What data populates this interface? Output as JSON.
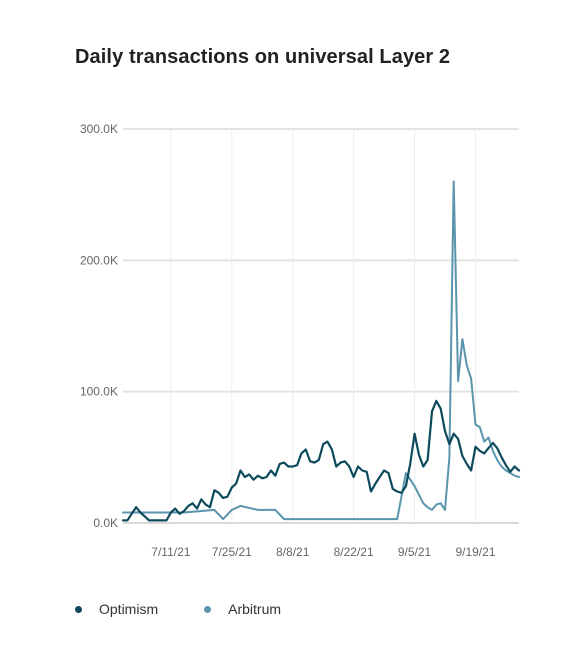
{
  "chart_data": {
    "type": "line",
    "title": "Daily transactions on universal Layer 2",
    "xlabel": "",
    "ylabel": "",
    "ylim": [
      0,
      300000
    ],
    "y_ticks": [
      0,
      100000,
      200000,
      300000
    ],
    "y_tick_labels": [
      "0.0K",
      "100.0K",
      "200.0K",
      "300.0K"
    ],
    "xlim": [
      "2021-06-30",
      "2021-09-29"
    ],
    "x_ticks": [
      "2021-07-11",
      "2021-07-25",
      "2021-08-08",
      "2021-08-22",
      "2021-09-05",
      "2021-09-19"
    ],
    "x_tick_labels": [
      "7/11/21",
      "7/25/21",
      "8/8/21",
      "8/22/21",
      "9/5/21",
      "9/19/21"
    ],
    "grid": "both",
    "legend_position": "bottom-left",
    "series": [
      {
        "name": "Optimism",
        "color": "#0d4a5c",
        "x": [
          "2021-06-30",
          "2021-07-01",
          "2021-07-02",
          "2021-07-03",
          "2021-07-04",
          "2021-07-05",
          "2021-07-06",
          "2021-07-07",
          "2021-07-08",
          "2021-07-09",
          "2021-07-10",
          "2021-07-11",
          "2021-07-12",
          "2021-07-13",
          "2021-07-14",
          "2021-07-15",
          "2021-07-16",
          "2021-07-17",
          "2021-07-18",
          "2021-07-19",
          "2021-07-20",
          "2021-07-21",
          "2021-07-22",
          "2021-07-23",
          "2021-07-24",
          "2021-07-25",
          "2021-07-26",
          "2021-07-27",
          "2021-07-28",
          "2021-07-29",
          "2021-07-30",
          "2021-07-31",
          "2021-08-01",
          "2021-08-02",
          "2021-08-03",
          "2021-08-04",
          "2021-08-05",
          "2021-08-06",
          "2021-08-07",
          "2021-08-08",
          "2021-08-09",
          "2021-08-10",
          "2021-08-11",
          "2021-08-12",
          "2021-08-13",
          "2021-08-14",
          "2021-08-15",
          "2021-08-16",
          "2021-08-17",
          "2021-08-18",
          "2021-08-19",
          "2021-08-20",
          "2021-08-21",
          "2021-08-22",
          "2021-08-23",
          "2021-08-24",
          "2021-08-25",
          "2021-08-26",
          "2021-08-27",
          "2021-08-28",
          "2021-08-29",
          "2021-08-30",
          "2021-08-31",
          "2021-09-01",
          "2021-09-02",
          "2021-09-03",
          "2021-09-04",
          "2021-09-05",
          "2021-09-06",
          "2021-09-07",
          "2021-09-08",
          "2021-09-09",
          "2021-09-10",
          "2021-09-11",
          "2021-09-12",
          "2021-09-13",
          "2021-09-14",
          "2021-09-15",
          "2021-09-16",
          "2021-09-17",
          "2021-09-18",
          "2021-09-19",
          "2021-09-20",
          "2021-09-21",
          "2021-09-22",
          "2021-09-23",
          "2021-09-24",
          "2021-09-25",
          "2021-09-26",
          "2021-09-27",
          "2021-09-28",
          "2021-09-29"
        ],
        "values": [
          2000,
          2000,
          7000,
          12000,
          8000,
          5000,
          2000,
          2000,
          2000,
          2000,
          2000,
          8000,
          11000,
          7000,
          9000,
          13000,
          15000,
          11000,
          18000,
          14000,
          12000,
          25000,
          23000,
          19000,
          20000,
          27000,
          30000,
          40000,
          35000,
          37000,
          33000,
          36000,
          34000,
          35000,
          40000,
          36000,
          45000,
          46000,
          43000,
          43000,
          44000,
          53000,
          56000,
          47000,
          46000,
          48000,
          60000,
          62000,
          56000,
          43000,
          46000,
          47000,
          43000,
          35000,
          43000,
          40000,
          39000,
          24000,
          30000,
          35000,
          40000,
          38000,
          26000,
          24000,
          23000,
          28000,
          45000,
          68000,
          52000,
          43000,
          48000,
          85000,
          93000,
          87000,
          70000,
          60000,
          68000,
          64000,
          51000,
          45000,
          40000,
          58000,
          55000,
          53000,
          57000,
          61000,
          57000,
          50000,
          44000,
          39000,
          43000,
          40000
        ]
      },
      {
        "name": "Arbitrum",
        "color": "#5a94ad",
        "x": [
          "2021-06-30",
          "2021-07-07",
          "2021-07-14",
          "2021-07-21",
          "2021-07-23",
          "2021-07-25",
          "2021-07-27",
          "2021-07-31",
          "2021-08-04",
          "2021-08-06",
          "2021-08-18",
          "2021-08-24",
          "2021-08-28",
          "2021-09-01",
          "2021-09-03",
          "2021-09-05",
          "2021-09-07",
          "2021-09-08",
          "2021-09-09",
          "2021-09-10",
          "2021-09-11",
          "2021-09-12",
          "2021-09-13",
          "2021-09-14",
          "2021-09-15",
          "2021-09-16",
          "2021-09-17",
          "2021-09-18",
          "2021-09-19",
          "2021-09-20",
          "2021-09-21",
          "2021-09-22",
          "2021-09-23",
          "2021-09-24",
          "2021-09-25",
          "2021-09-26",
          "2021-09-27",
          "2021-09-28",
          "2021-09-29"
        ],
        "values": [
          8000,
          8000,
          8000,
          10000,
          3000,
          10000,
          13000,
          10000,
          10000,
          3000,
          3000,
          3000,
          3000,
          3000,
          38000,
          28000,
          15000,
          12000,
          10000,
          14000,
          15000,
          10000,
          50000,
          260000,
          108000,
          140000,
          120000,
          110000,
          75000,
          73000,
          62000,
          65000,
          55000,
          48000,
          43000,
          40000,
          38000,
          36000,
          35000
        ]
      }
    ]
  }
}
